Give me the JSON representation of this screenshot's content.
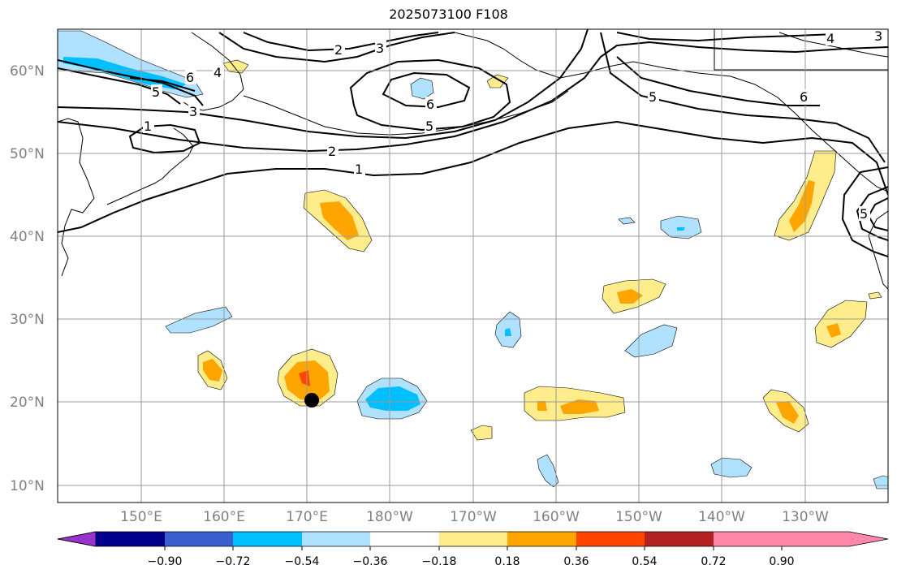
{
  "title": "2025073100 F108",
  "lat_labels": [
    "60°N",
    "50°N",
    "40°N",
    "30°N",
    "20°N",
    "10°N"
  ],
  "lon_labels": [
    "150°E",
    "160°E",
    "170°E",
    "180°W",
    "170°W",
    "160°W",
    "150°W",
    "140°W",
    "130°W"
  ],
  "contour_labels": [
    "1",
    "2",
    "3",
    "4",
    "5",
    "6"
  ],
  "colorbar": {
    "ticks": [
      "−0.90",
      "−0.72",
      "−0.54",
      "−0.36",
      "−0.18",
      "0.18",
      "0.36",
      "0.54",
      "0.72",
      "0.90"
    ],
    "colors": [
      "#9932cc",
      "#00008b",
      "#3a5fcd",
      "#00bfff",
      "#b0e2ff",
      "#ffffff",
      "#ffec8b",
      "#ffa500",
      "#ff4500",
      "#b22222",
      "#ff88aa"
    ]
  },
  "marker": "storm-position-dot"
}
